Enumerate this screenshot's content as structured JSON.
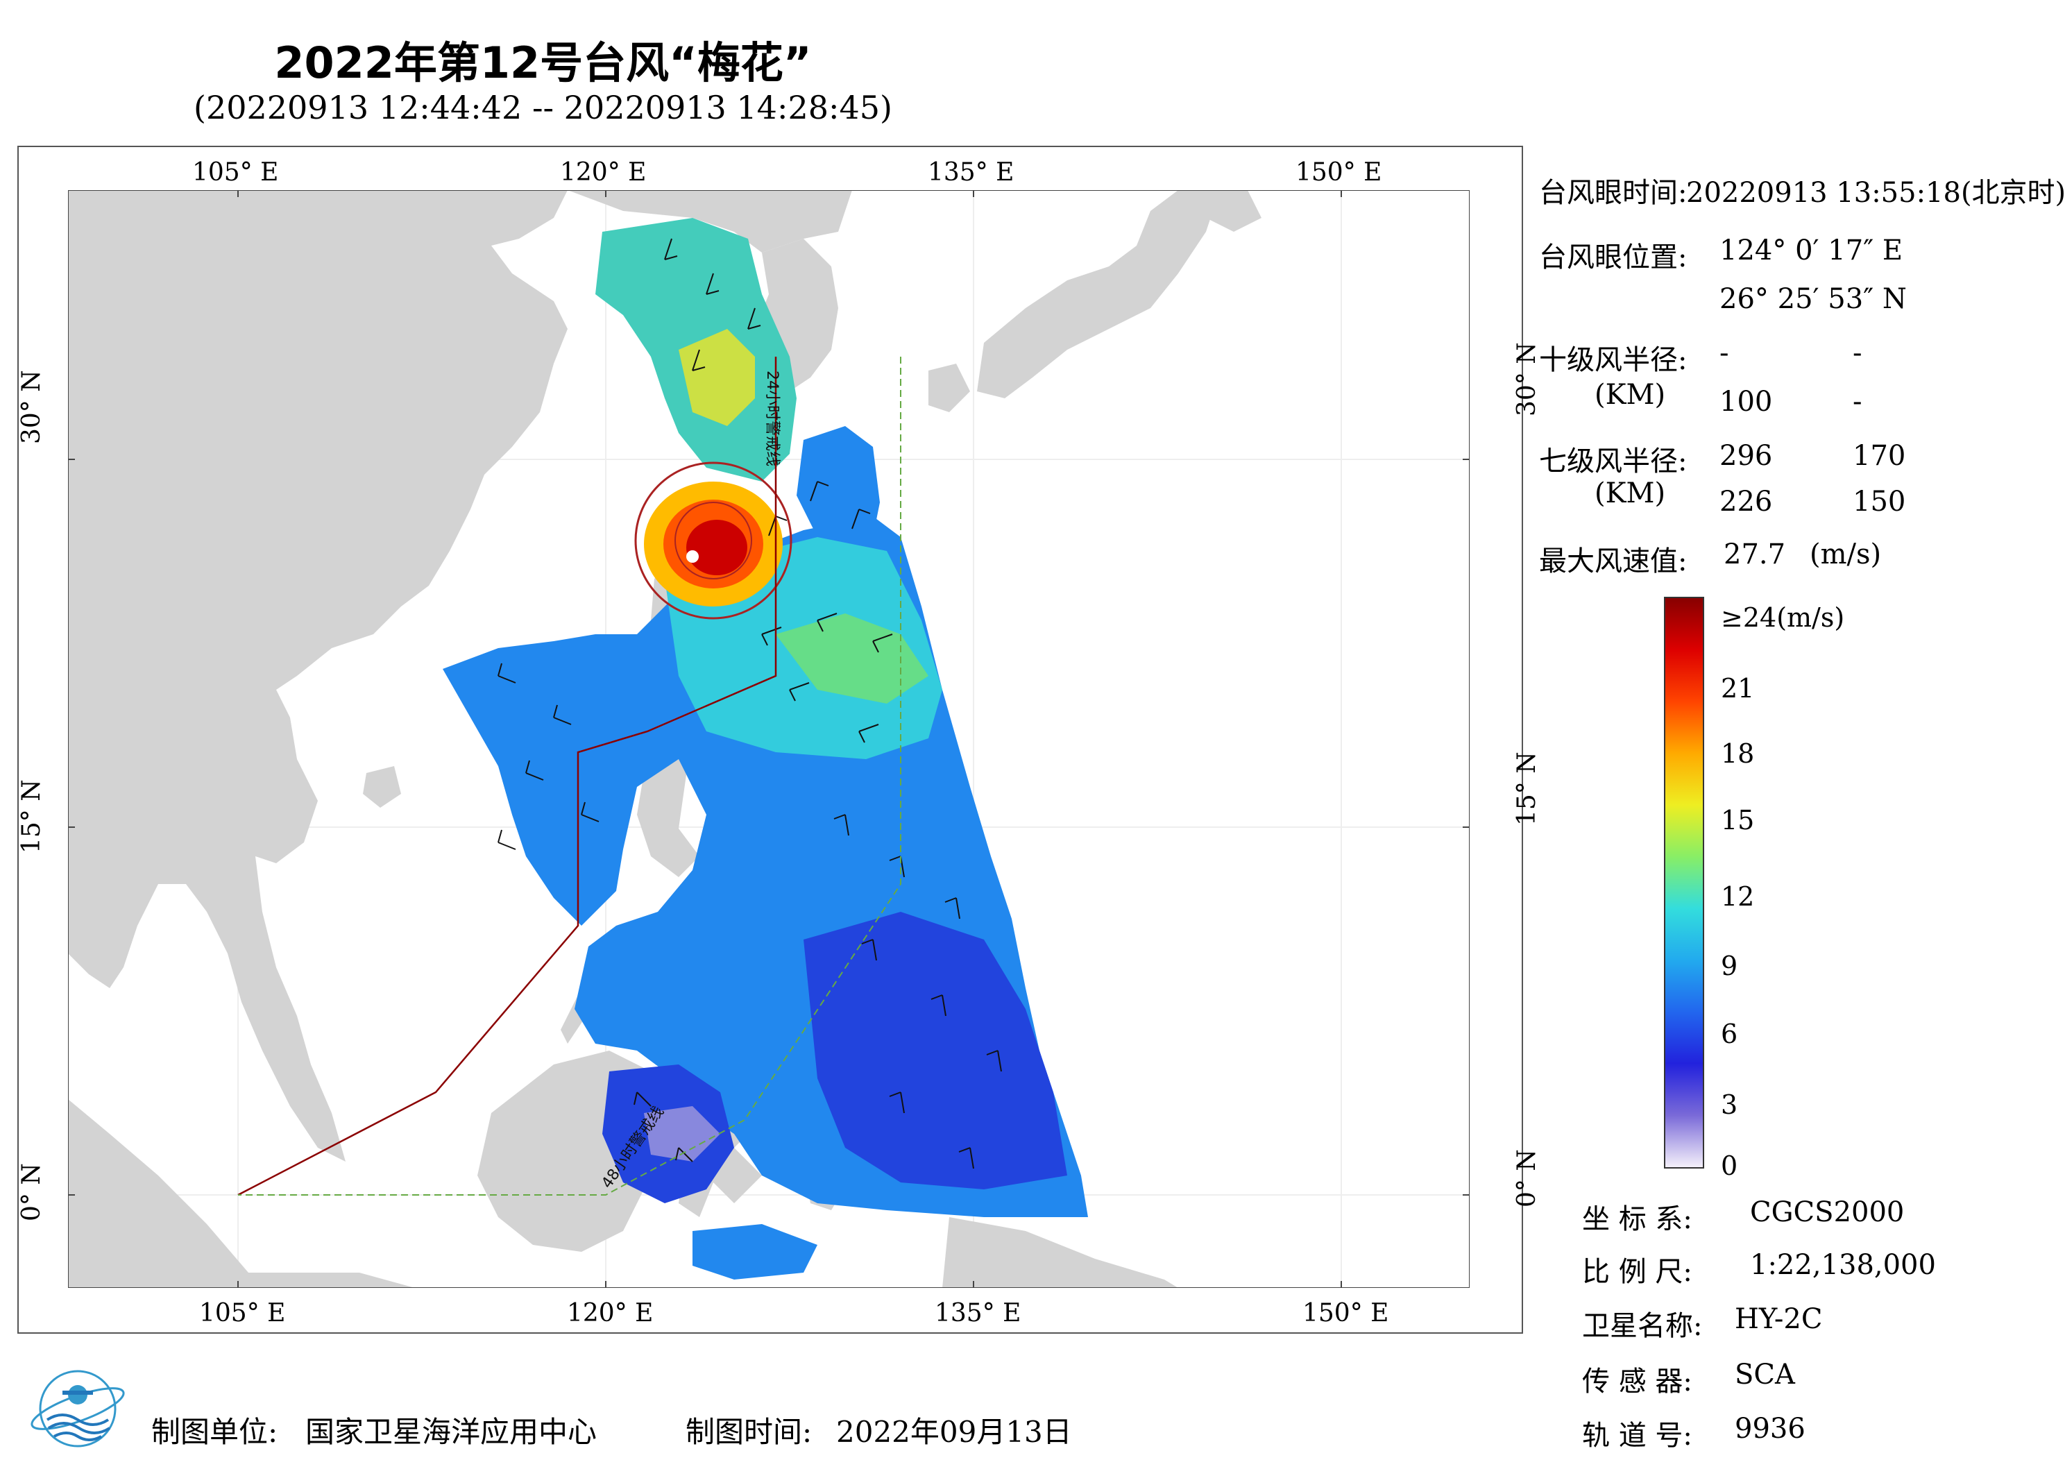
{
  "title": "2022年第12号台风“梅花”",
  "subtitle": "(20220913 12:44:42 -- 20220913 14:28:45)",
  "map": {
    "lon_ticks": [
      "105° E",
      "120° E",
      "135° E",
      "150° E"
    ],
    "lat_ticks": [
      "30° N",
      "15° N",
      "0° N"
    ],
    "lines": {
      "warning_24h": "24小时警戒线",
      "warning_48h": "48小时警戒线"
    },
    "colors": {
      "land": "#d3d3d3",
      "sea": "#ffffff",
      "warning_24h": "#8b0000",
      "warning_48h": "#66aa44"
    }
  },
  "info": {
    "eye_time_label": "台风眼时间:",
    "eye_time_value": "20220913 13:55:18(北京时)",
    "eye_pos_label": "台风眼位置:",
    "eye_lon": "124° 0′ 17″ E",
    "eye_lat": "26° 25′ 53″ N",
    "r10_label": "十级风半径:",
    "r10_unit": "(KM)",
    "r10_values": [
      "-",
      "-",
      "100",
      "-"
    ],
    "r7_label": "七级风半径:",
    "r7_unit": "(KM)",
    "r7_values": [
      "296",
      "170",
      "226",
      "150"
    ],
    "max_wind_label": "最大风速值:",
    "max_wind_value": "27.7",
    "max_wind_unit": "(m/s)"
  },
  "colorbar": {
    "ticks": [
      "≥24(m/s)",
      "21",
      "18",
      "15",
      "12",
      "9",
      "6",
      "3",
      "0"
    ],
    "stops": [
      "#f4f0fa",
      "#7a6ad8",
      "#2222dd",
      "#2266ee",
      "#22aaee",
      "#33dddd",
      "#88ee66",
      "#eeee22",
      "#ffaa00",
      "#ff4400",
      "#dd0000",
      "#880000"
    ]
  },
  "meta": {
    "crs_label": "坐 标 系:",
    "crs_value": "CGCS2000",
    "scale_label": "比 例 尺:",
    "scale_value": "1:22,138,000",
    "sat_label": "卫星名称:",
    "sat_value": "HY-2C",
    "sensor_label": "传 感 器:",
    "sensor_value": "SCA",
    "orbit_label": "轨 道 号:",
    "orbit_value": "9936"
  },
  "footer": {
    "unit_label": "制图单位:",
    "unit_value": "国家卫星海洋应用中心",
    "time_label": "制图时间:",
    "time_value": "2022年09月13日"
  }
}
